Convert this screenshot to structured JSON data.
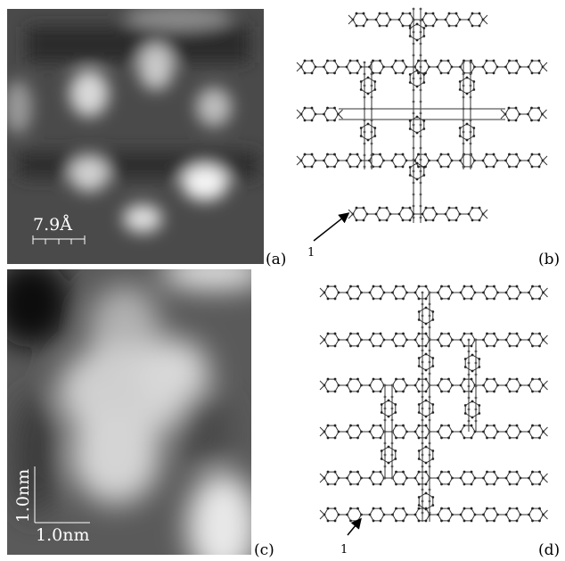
{
  "panels": [
    {
      "label": "(a)",
      "scale_label": "7.9Å"
    },
    {
      "label": "(b)",
      "pointer_label": "1"
    },
    {
      "label": "(c)",
      "scale_label_vertical": "1.0nm",
      "scale_label_horizontal": "1.0nm"
    },
    {
      "label": "(d)",
      "pointer_label": "1"
    }
  ]
}
